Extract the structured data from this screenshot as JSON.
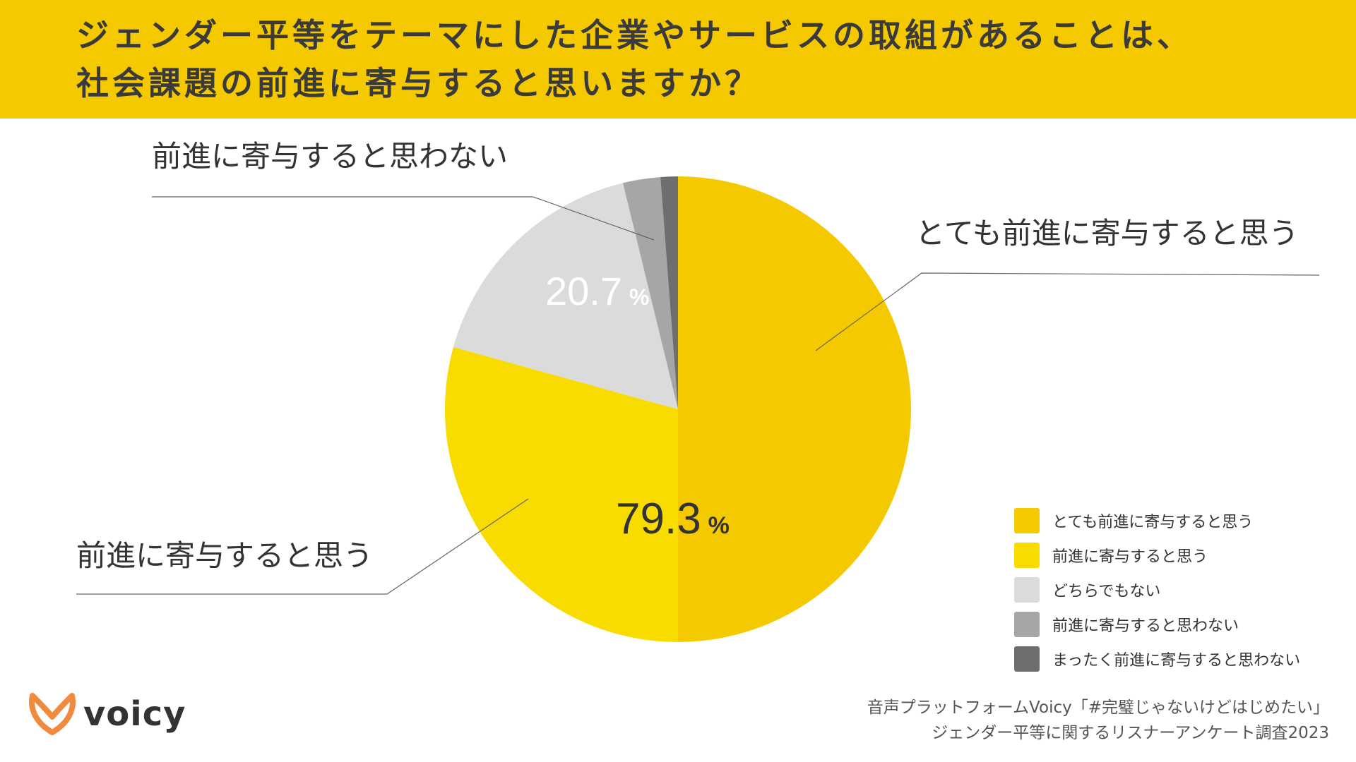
{
  "title": {
    "line1": "ジェンダー平等をテーマにした企業やサービスの取組があることは、",
    "line2": "社会課題の前進に寄与すると思いますか？"
  },
  "chart_data": {
    "type": "pie",
    "labels": [
      "とても前進に寄与すると思う",
      "前進に寄与すると思う",
      "どちらでもない",
      "前進に寄与すると思わない",
      "まったく前進に寄与すると思わない"
    ],
    "values": [
      50.0,
      29.3,
      16.9,
      2.6,
      1.2
    ],
    "colors": [
      "#F5C900",
      "#F8DC00",
      "#DBDBDB",
      "#A6A6A6",
      "#6E6E6E"
    ],
    "start_angle": "12 o'clock",
    "direction": "clockwise",
    "summary_labels": [
      {
        "value": "79.3",
        "unit": "%"
      },
      {
        "value": "20.7",
        "unit": "%"
      }
    ],
    "callouts": [
      "とても前進に寄与すると思う",
      "前進に寄与すると思う",
      "前進に寄与すると思わない"
    ],
    "legend_position": "bottom-right"
  },
  "footer": {
    "line1": "音声プラットフォームVoicy「#完璧じゃないけどはじめたい」",
    "line2": "ジェンダー平等に関するリスナーアンケート調査2023"
  },
  "logo": {
    "text": "voicy",
    "icon": "voicy-logo-icon",
    "color": "#F08A3C"
  }
}
